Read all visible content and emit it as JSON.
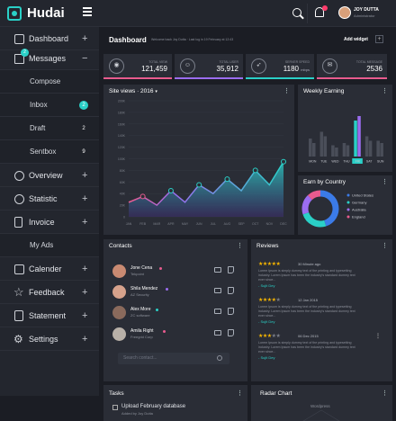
{
  "app": {
    "brand": "Hudai"
  },
  "topbar": {
    "user_name": "JOY DUTTA",
    "user_role": "Administrator"
  },
  "sidebar": {
    "items": [
      {
        "label": "Dashboard",
        "icon": "grid-icon",
        "action": "+"
      },
      {
        "label": "Messages",
        "icon": "envelope-icon",
        "action": "−",
        "badge": "2"
      },
      {
        "label": "Overview",
        "icon": "compass-icon",
        "action": "+"
      },
      {
        "label": "Statistic",
        "icon": "pie-chart-icon",
        "action": "+"
      },
      {
        "label": "Invoice",
        "icon": "document-icon",
        "action": "+"
      },
      {
        "label": "Calender",
        "icon": "calendar-icon",
        "action": "+"
      },
      {
        "label": "Feedback",
        "icon": "star-icon",
        "action": "+"
      },
      {
        "label": "Statement",
        "icon": "list-icon",
        "action": "+"
      },
      {
        "label": "Settings",
        "icon": "gear-icon",
        "action": "+"
      }
    ],
    "sub_items": [
      {
        "label": "Compose"
      },
      {
        "label": "Inbox",
        "badge": "2"
      },
      {
        "label": "Draft",
        "badge": "2"
      },
      {
        "label": "Sentbox",
        "badge": "9"
      },
      {
        "label": "My Ads"
      }
    ]
  },
  "header": {
    "title": "Dashboard",
    "subtitle": "Welcome back Joy Dutta · Last log in 19 February at 12:43",
    "add_widget": "Add widget",
    "add_widget_icon": "+"
  },
  "stats": [
    {
      "label": "TOTAL VIEW",
      "value": "121,459",
      "unit": "",
      "icon": "eye-icon",
      "glyph": "◉",
      "color": "#e85b8e"
    },
    {
      "label": "TOTAL USER",
      "value": "35,912",
      "unit": "",
      "icon": "users-icon",
      "glyph": "☺",
      "color": "#9b6df0"
    },
    {
      "label": "SERVER SPEED",
      "value": "1180",
      "unit": "mbps",
      "icon": "rocket-icon",
      "glyph": "➶",
      "color": "#2ad0c7"
    },
    {
      "label": "TOTAL MESSAGE",
      "value": "2536",
      "unit": "",
      "icon": "mail-icon",
      "glyph": "✉",
      "color": "#e85b8e"
    }
  ],
  "site_views": {
    "title": "Site views",
    "year": "2016",
    "menu": "⋮",
    "chart_data": {
      "type": "area",
      "categories": [
        "JAN",
        "FEB",
        "MAR",
        "APR",
        "MAY",
        "JUN",
        "JUL",
        "AUG",
        "SEP",
        "OCT",
        "NOV",
        "DEC"
      ],
      "values": [
        25,
        35,
        20,
        45,
        25,
        55,
        40,
        65,
        45,
        80,
        55,
        95
      ],
      "ylim": [
        0,
        200
      ],
      "yticks": [
        "200K",
        "180K",
        "160K",
        "140K",
        "120K",
        "100K",
        "80K",
        "60K",
        "40K",
        "20K",
        "0"
      ]
    }
  },
  "weekly_earning": {
    "title": "Weekly Earning",
    "menu": "⋮",
    "chart_data": {
      "type": "bar",
      "categories": [
        "MON",
        "TUE",
        "WED",
        "THU",
        "FRI",
        "SAT",
        "SUN"
      ],
      "series": [
        {
          "values": [
            40,
            55,
            25,
            30,
            80,
            45,
            35
          ]
        },
        {
          "values": [
            30,
            45,
            20,
            25,
            90,
            35,
            30
          ]
        }
      ],
      "highlight": "FRI"
    }
  },
  "earn_by_country": {
    "title": "Earn by Country",
    "menu": "⋮",
    "chart_data": {
      "type": "pie",
      "labels": [
        "United States",
        "Germany",
        "Australia",
        "England"
      ],
      "values": [
        45,
        25,
        18,
        12
      ],
      "colors": [
        "#3b7be8",
        "#2ad0c7",
        "#9b6df0",
        "#e85b8e"
      ]
    }
  },
  "contacts": {
    "title": "Contacts",
    "menu": "⋮",
    "search_placeholder": "Search contact...",
    "items": [
      {
        "name": "Jone Cena",
        "company": "Tekpoint",
        "status_color": "#e85b8e",
        "avatar_color": "#c98a72"
      },
      {
        "name": "Shila Mendez",
        "company": "AZ Security",
        "status_color": "#9b6df0",
        "avatar_color": "#d6a28c"
      },
      {
        "name": "Alex More",
        "company": "ZC software",
        "status_color": "#2ad0c7",
        "avatar_color": "#8a6a5c"
      },
      {
        "name": "Amila Right",
        "company": "Freegrid Corp",
        "status_color": "#e85b8e",
        "avatar_color": "#b8b0a8"
      }
    ]
  },
  "reviews": {
    "title": "Reviews",
    "menu": "⋮",
    "items": [
      {
        "full": "★★★★★",
        "empty": "",
        "date": "30 Minute ago",
        "text": "Lorem Ipsum is simply dummy text of the printing and typesetting industry. Lorem Ipsum has been the industry's standard dummy text ever since...",
        "by": "- Sujit Dey"
      },
      {
        "full": "★★★★",
        "empty": "★",
        "date": "12 Jan 2015",
        "text": "Lorem Ipsum is simply dummy text of the printing and typesetting industry. Lorem Ipsum has been the industry's standard dummy text ever since...",
        "by": "- Sujit Dey"
      },
      {
        "full": "★★★",
        "empty": "★★",
        "date": "06 Dec 2015",
        "text": "Lorem Ipsum is simply dummy text of the printing and typesetting industry. Lorem Ipsum has been the industry's standard dummy text ever since...",
        "by": "- Sujit Dey"
      }
    ]
  },
  "tasks": {
    "title": "Tasks",
    "menu": "⋮",
    "item_title": "Upload February database",
    "item_by": "Added by Joy Dutta"
  },
  "radar": {
    "title": "Radar Chart",
    "menu": "⋮",
    "label": "Wordpress"
  }
}
